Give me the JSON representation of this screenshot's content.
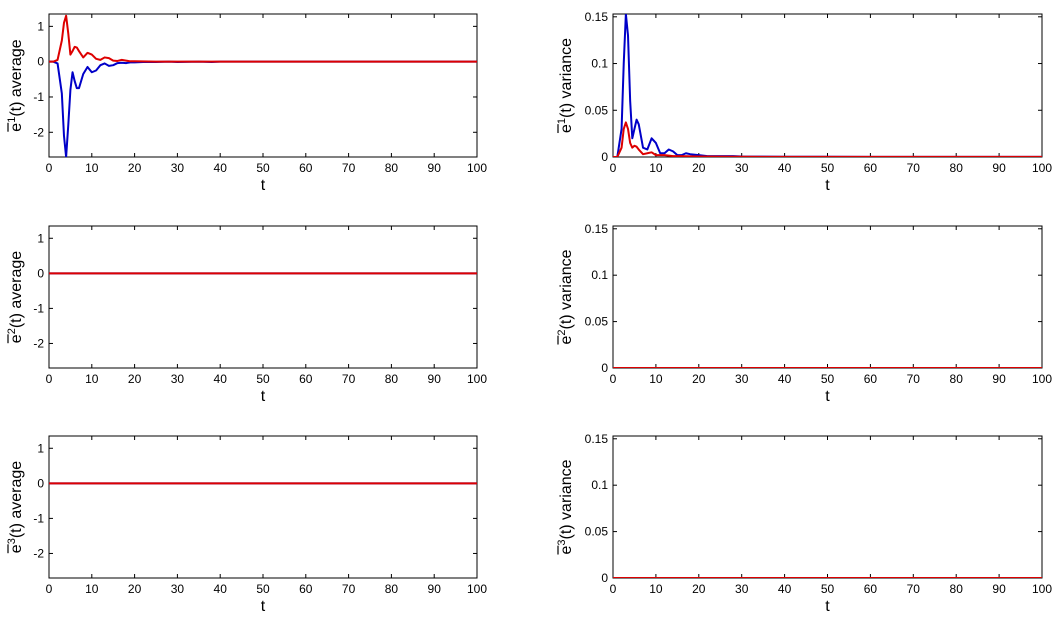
{
  "chart_data": [
    {
      "type": "line",
      "xlabel": "t",
      "ylabel": {
        "pre": "e",
        "sup": "1",
        "post": "(t) average"
      },
      "xlim": [
        0,
        100
      ],
      "ylim": [
        -2.7,
        1.35
      ],
      "xticks": [
        0,
        10,
        20,
        30,
        40,
        50,
        60,
        70,
        80,
        90,
        100
      ],
      "yticks": [
        -2,
        -1,
        0,
        1
      ],
      "ytick_labels": [
        "-2",
        "-1",
        "0",
        "1"
      ],
      "series": [
        {
          "color": "#0000c8",
          "x": [
            0,
            1,
            2,
            3,
            3.5,
            4,
            4.5,
            5,
            5.5,
            6,
            6.5,
            7,
            8,
            9,
            10,
            11,
            12,
            13,
            14,
            15,
            16,
            17,
            18,
            19,
            20,
            22,
            25,
            28,
            30,
            35,
            38,
            40,
            50,
            60,
            70,
            80,
            90,
            100
          ],
          "y": [
            0,
            0,
            -0.05,
            -0.9,
            -2.1,
            -2.7,
            -1.8,
            -0.8,
            -0.3,
            -0.55,
            -0.75,
            -0.75,
            -0.35,
            -0.15,
            -0.3,
            -0.25,
            -0.1,
            -0.05,
            -0.12,
            -0.1,
            -0.04,
            -0.03,
            -0.04,
            -0.02,
            -0.02,
            -0.01,
            -0.01,
            0,
            -0.01,
            0,
            -0.01,
            0,
            0,
            0,
            0,
            0,
            0,
            0
          ]
        },
        {
          "color": "#dd0000",
          "x": [
            0,
            1,
            2,
            3,
            3.5,
            4,
            4.5,
            5,
            5.5,
            6,
            6.5,
            7,
            8,
            9,
            10,
            11,
            12,
            13,
            14,
            15,
            16,
            17,
            18,
            19,
            20,
            25,
            30,
            40,
            50,
            60,
            70,
            80,
            90,
            100
          ],
          "y": [
            0,
            0,
            0.05,
            0.6,
            1.1,
            1.3,
            0.8,
            0.2,
            0.3,
            0.42,
            0.4,
            0.3,
            0.12,
            0.25,
            0.2,
            0.08,
            0.05,
            0.12,
            0.1,
            0.03,
            0.02,
            0.05,
            0.03,
            0.01,
            0.01,
            0,
            0,
            0,
            0,
            0,
            0,
            0,
            0,
            0
          ]
        }
      ]
    },
    {
      "type": "line",
      "xlabel": "t",
      "ylabel": {
        "pre": "e",
        "sup": "1",
        "post": "(t) variance"
      },
      "xlim": [
        0,
        100
      ],
      "ylim": [
        0,
        0.153
      ],
      "xticks": [
        0,
        10,
        20,
        30,
        40,
        50,
        60,
        70,
        80,
        90,
        100
      ],
      "yticks": [
        0,
        0.05,
        0.1,
        0.15
      ],
      "ytick_labels": [
        "0",
        "0.05",
        "0.1",
        "0.15"
      ],
      "series": [
        {
          "color": "#0000c8",
          "x": [
            0,
            1,
            2,
            2.5,
            3,
            3.5,
            4,
            4.5,
            5,
            5.5,
            6,
            7,
            8,
            9,
            10,
            11,
            12,
            13,
            14,
            15,
            16,
            17,
            18,
            20,
            22,
            25,
            28,
            30,
            40,
            50,
            60,
            70,
            80,
            90,
            100
          ],
          "y": [
            0,
            0,
            0.03,
            0.1,
            0.153,
            0.13,
            0.06,
            0.02,
            0.03,
            0.04,
            0.035,
            0.01,
            0.008,
            0.02,
            0.015,
            0.004,
            0.004,
            0.008,
            0.006,
            0.002,
            0.002,
            0.004,
            0.003,
            0.002,
            0.001,
            0.001,
            0.001,
            0.0005,
            0.0003,
            0.0002,
            0.0001,
            0.0001,
            0.0001,
            0.0001,
            0.0001
          ]
        },
        {
          "color": "#dd0000",
          "x": [
            0,
            1,
            2,
            2.5,
            3,
            3.5,
            4,
            4.5,
            5,
            5.5,
            6,
            7,
            8,
            9,
            10,
            12,
            14,
            16,
            20,
            30,
            40,
            50,
            60,
            70,
            80,
            90,
            100
          ],
          "y": [
            0,
            0,
            0.01,
            0.03,
            0.037,
            0.03,
            0.015,
            0.01,
            0.012,
            0.011,
            0.008,
            0.003,
            0.004,
            0.005,
            0.002,
            0.002,
            0.001,
            0.001,
            0.0005,
            0.0002,
            0.0001,
            0.0001,
            0.0001,
            0.0001,
            0.0001,
            0.0001,
            0.0001
          ]
        }
      ]
    },
    {
      "type": "line",
      "xlabel": "t",
      "ylabel": {
        "pre": "e",
        "sup": "2",
        "post": "(t) average"
      },
      "xlim": [
        0,
        100
      ],
      "ylim": [
        -2.7,
        1.35
      ],
      "xticks": [
        0,
        10,
        20,
        30,
        40,
        50,
        60,
        70,
        80,
        90,
        100
      ],
      "yticks": [
        -2,
        -1,
        0,
        1
      ],
      "ytick_labels": [
        "-2",
        "-1",
        "0",
        "1"
      ],
      "series": [
        {
          "color": "#0000c8",
          "x": [
            0,
            100
          ],
          "y": [
            0,
            0
          ]
        },
        {
          "color": "#dd0000",
          "x": [
            0,
            100
          ],
          "y": [
            0,
            0
          ]
        }
      ]
    },
    {
      "type": "line",
      "xlabel": "t",
      "ylabel": {
        "pre": "e",
        "sup": "2",
        "post": "(t) variance"
      },
      "xlim": [
        0,
        100
      ],
      "ylim": [
        0,
        0.153
      ],
      "xticks": [
        0,
        10,
        20,
        30,
        40,
        50,
        60,
        70,
        80,
        90,
        100
      ],
      "yticks": [
        0,
        0.05,
        0.1,
        0.15
      ],
      "ytick_labels": [
        "0",
        "0.05",
        "0.1",
        "0.15"
      ],
      "series": [
        {
          "color": "#0000c8",
          "x": [
            0,
            100
          ],
          "y": [
            0,
            0
          ]
        },
        {
          "color": "#dd0000",
          "x": [
            0,
            100
          ],
          "y": [
            0,
            0
          ]
        }
      ]
    },
    {
      "type": "line",
      "xlabel": "t",
      "ylabel": {
        "pre": "e",
        "sup": "3",
        "post": "(t) average"
      },
      "xlim": [
        0,
        100
      ],
      "ylim": [
        -2.7,
        1.35
      ],
      "xticks": [
        0,
        10,
        20,
        30,
        40,
        50,
        60,
        70,
        80,
        90,
        100
      ],
      "yticks": [
        -2,
        -1,
        0,
        1
      ],
      "ytick_labels": [
        "-2",
        "-1",
        "0",
        "1"
      ],
      "series": [
        {
          "color": "#0000c8",
          "x": [
            0,
            100
          ],
          "y": [
            0,
            0
          ]
        },
        {
          "color": "#dd0000",
          "x": [
            0,
            100
          ],
          "y": [
            0,
            0
          ]
        }
      ]
    },
    {
      "type": "line",
      "xlabel": "t",
      "ylabel": {
        "pre": "e",
        "sup": "3",
        "post": "(t) variance"
      },
      "xlim": [
        0,
        100
      ],
      "ylim": [
        0,
        0.153
      ],
      "xticks": [
        0,
        10,
        20,
        30,
        40,
        50,
        60,
        70,
        80,
        90,
        100
      ],
      "yticks": [
        0,
        0.05,
        0.1,
        0.15
      ],
      "ytick_labels": [
        "0",
        "0.05",
        "0.1",
        "0.15"
      ],
      "series": [
        {
          "color": "#0000c8",
          "x": [
            0,
            100
          ],
          "y": [
            0,
            0
          ]
        },
        {
          "color": "#dd0000",
          "x": [
            0,
            100
          ],
          "y": [
            0,
            0
          ]
        }
      ]
    }
  ]
}
